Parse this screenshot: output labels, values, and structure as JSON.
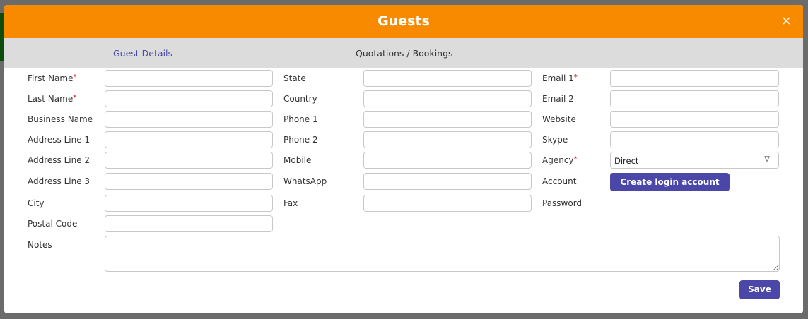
{
  "modal": {
    "title": "Guests",
    "close_icon": "×"
  },
  "tabs": [
    {
      "label": "Guest Details",
      "active": true
    },
    {
      "label": "Quotations / Bookings",
      "active": false
    }
  ],
  "col1": [
    {
      "label": "First Name",
      "required": true
    },
    {
      "label": "Last Name",
      "required": true
    },
    {
      "label": "Business Name"
    },
    {
      "label": "Address Line 1"
    },
    {
      "label": "Address Line 2"
    },
    {
      "label": "Address Line 3"
    },
    {
      "label": "City"
    },
    {
      "label": "Postal Code"
    }
  ],
  "col2": [
    {
      "label": "State"
    },
    {
      "label": "Country"
    },
    {
      "label": "Phone 1"
    },
    {
      "label": "Phone 2"
    },
    {
      "label": "Mobile"
    },
    {
      "label": "WhatsApp"
    },
    {
      "label": "Fax"
    }
  ],
  "col3": [
    {
      "label": "Email 1",
      "required": true
    },
    {
      "label": "Email 2"
    },
    {
      "label": "Website"
    },
    {
      "label": "Skype"
    },
    {
      "label": "Agency",
      "required": true
    },
    {
      "label": "Account"
    },
    {
      "label": "Password"
    }
  ],
  "agency": {
    "value": "Direct"
  },
  "create_login_label": "Create login account",
  "notes_label": "Notes",
  "save_label": "Save",
  "colors": {
    "header": "#f88a00",
    "accent": "#4a47a8",
    "tabbar": "#dcdcdc"
  }
}
